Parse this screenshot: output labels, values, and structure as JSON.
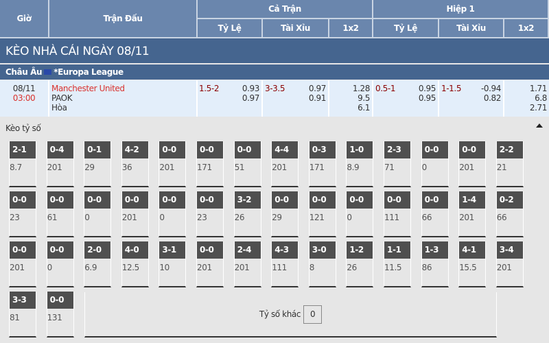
{
  "header": {
    "time": "Giờ",
    "match": "Trận Đấu",
    "full": "Cả Trận",
    "half": "Hiệp 1",
    "handicap": "Tỷ Lệ",
    "overunder": "Tài Xỉu",
    "x12": "1x2"
  },
  "title": "KÈO NHÀ CÁI NGÀY 08/11",
  "league": {
    "region": "Châu Âu",
    "name": "*Europa League",
    "flag_icon": "eu-flag-icon"
  },
  "match": {
    "date": "08/11",
    "time": "03:00",
    "home": "Manchester United",
    "away": "PAOK",
    "draw": "Hòa",
    "full": {
      "hdp": "1.5-2",
      "hdp_home": "0.93",
      "hdp_away": "0.97",
      "ou": "3-3.5",
      "ou_over": "0.97",
      "ou_under": "0.91",
      "x1": "1.28",
      "x2": "9.5",
      "xx": "6.1"
    },
    "half": {
      "hdp": "0.5-1",
      "hdp_home": "0.95",
      "hdp_away": "0.95",
      "ou": "1-1.5",
      "ou_over": "-0.94",
      "ou_under": "0.82",
      "x1": "1.71",
      "x2": "6.8",
      "xx": "2.71"
    }
  },
  "correct_score": {
    "label": "Kèo tỷ số",
    "other_label": "Tỷ số khác",
    "other_value": "0",
    "cells": [
      [
        "2-1",
        "8.7"
      ],
      [
        "0-4",
        "201"
      ],
      [
        "0-1",
        "29"
      ],
      [
        "4-2",
        "36"
      ],
      [
        "0-0",
        "201"
      ],
      [
        "0-0",
        "171"
      ],
      [
        "0-0",
        "51"
      ],
      [
        "4-4",
        "201"
      ],
      [
        "0-3",
        "171"
      ],
      [
        "1-0",
        "8.9"
      ],
      [
        "2-3",
        "71"
      ],
      [
        "0-0",
        "0"
      ],
      [
        "0-0",
        "201"
      ],
      [
        "2-2",
        "21"
      ],
      [
        "0-0",
        "23"
      ],
      [
        "0-0",
        "61"
      ],
      [
        "0-0",
        "0"
      ],
      [
        "0-0",
        "201"
      ],
      [
        "0-0",
        "0"
      ],
      [
        "0-0",
        "23"
      ],
      [
        "3-2",
        "26"
      ],
      [
        "0-0",
        "29"
      ],
      [
        "0-0",
        "121"
      ],
      [
        "0-0",
        "0"
      ],
      [
        "0-0",
        "111"
      ],
      [
        "0-0",
        "66"
      ],
      [
        "1-4",
        "201"
      ],
      [
        "0-2",
        "66"
      ],
      [
        "0-0",
        "201"
      ],
      [
        "0-0",
        "0"
      ],
      [
        "2-0",
        "6.9"
      ],
      [
        "4-0",
        "12.5"
      ],
      [
        "3-1",
        "10"
      ],
      [
        "0-0",
        "201"
      ],
      [
        "2-4",
        "201"
      ],
      [
        "4-3",
        "111"
      ],
      [
        "3-0",
        "8"
      ],
      [
        "1-2",
        "26"
      ],
      [
        "1-1",
        "11.5"
      ],
      [
        "1-3",
        "86"
      ],
      [
        "4-1",
        "15.5"
      ],
      [
        "3-4",
        "201"
      ],
      [
        "3-3",
        "81"
      ],
      [
        "0-0",
        "131"
      ]
    ]
  }
}
